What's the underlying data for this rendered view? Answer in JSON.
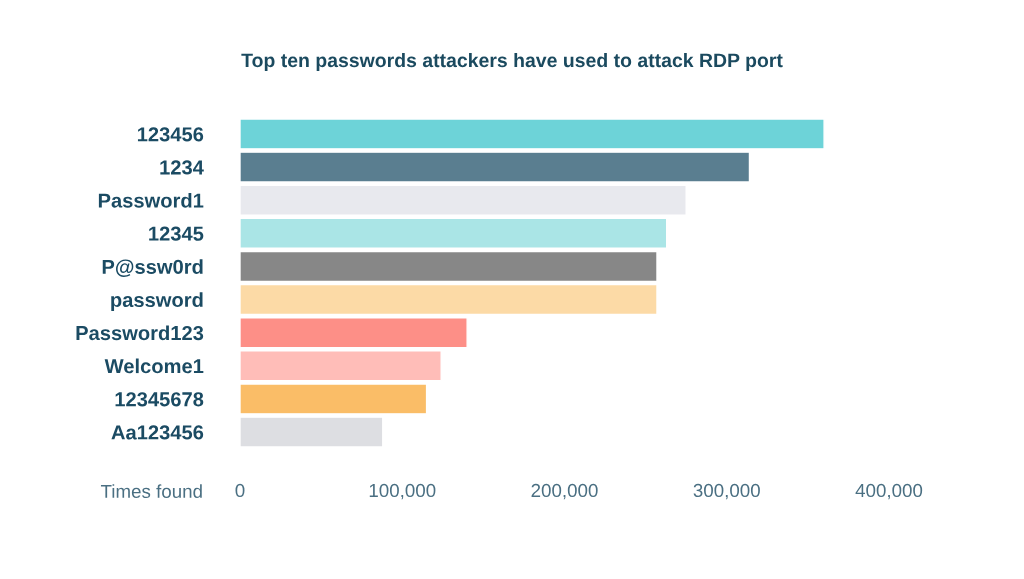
{
  "chart_data": {
    "type": "bar",
    "orientation": "horizontal",
    "title": "Top ten passwords attackers have used to attack RDP port",
    "xlabel": "Times found",
    "categories": [
      "123456",
      "1234",
      "Password1",
      "12345",
      "P@ssw0rd",
      "password",
      "Password123",
      "Welcome1",
      "12345678",
      "Aa123456"
    ],
    "values": [
      360000,
      314000,
      275000,
      263000,
      257000,
      257000,
      140000,
      124000,
      115000,
      88000
    ],
    "colors": [
      "#6dd3d8",
      "#5a7e90",
      "#e8e9ee",
      "#aae5e6",
      "#878787",
      "#fcdaa6",
      "#fd8f87",
      "#ffbdb8",
      "#fabd67",
      "#dddee2"
    ],
    "xlim": [
      0,
      400000
    ],
    "xticks": [
      0,
      {
        "value": 100000,
        "label": "100,000"
      },
      {
        "value": 200000,
        "label": "200,000"
      },
      {
        "value": 300000,
        "label": "300,000"
      },
      {
        "value": 400000,
        "label": "400,000"
      }
    ]
  }
}
